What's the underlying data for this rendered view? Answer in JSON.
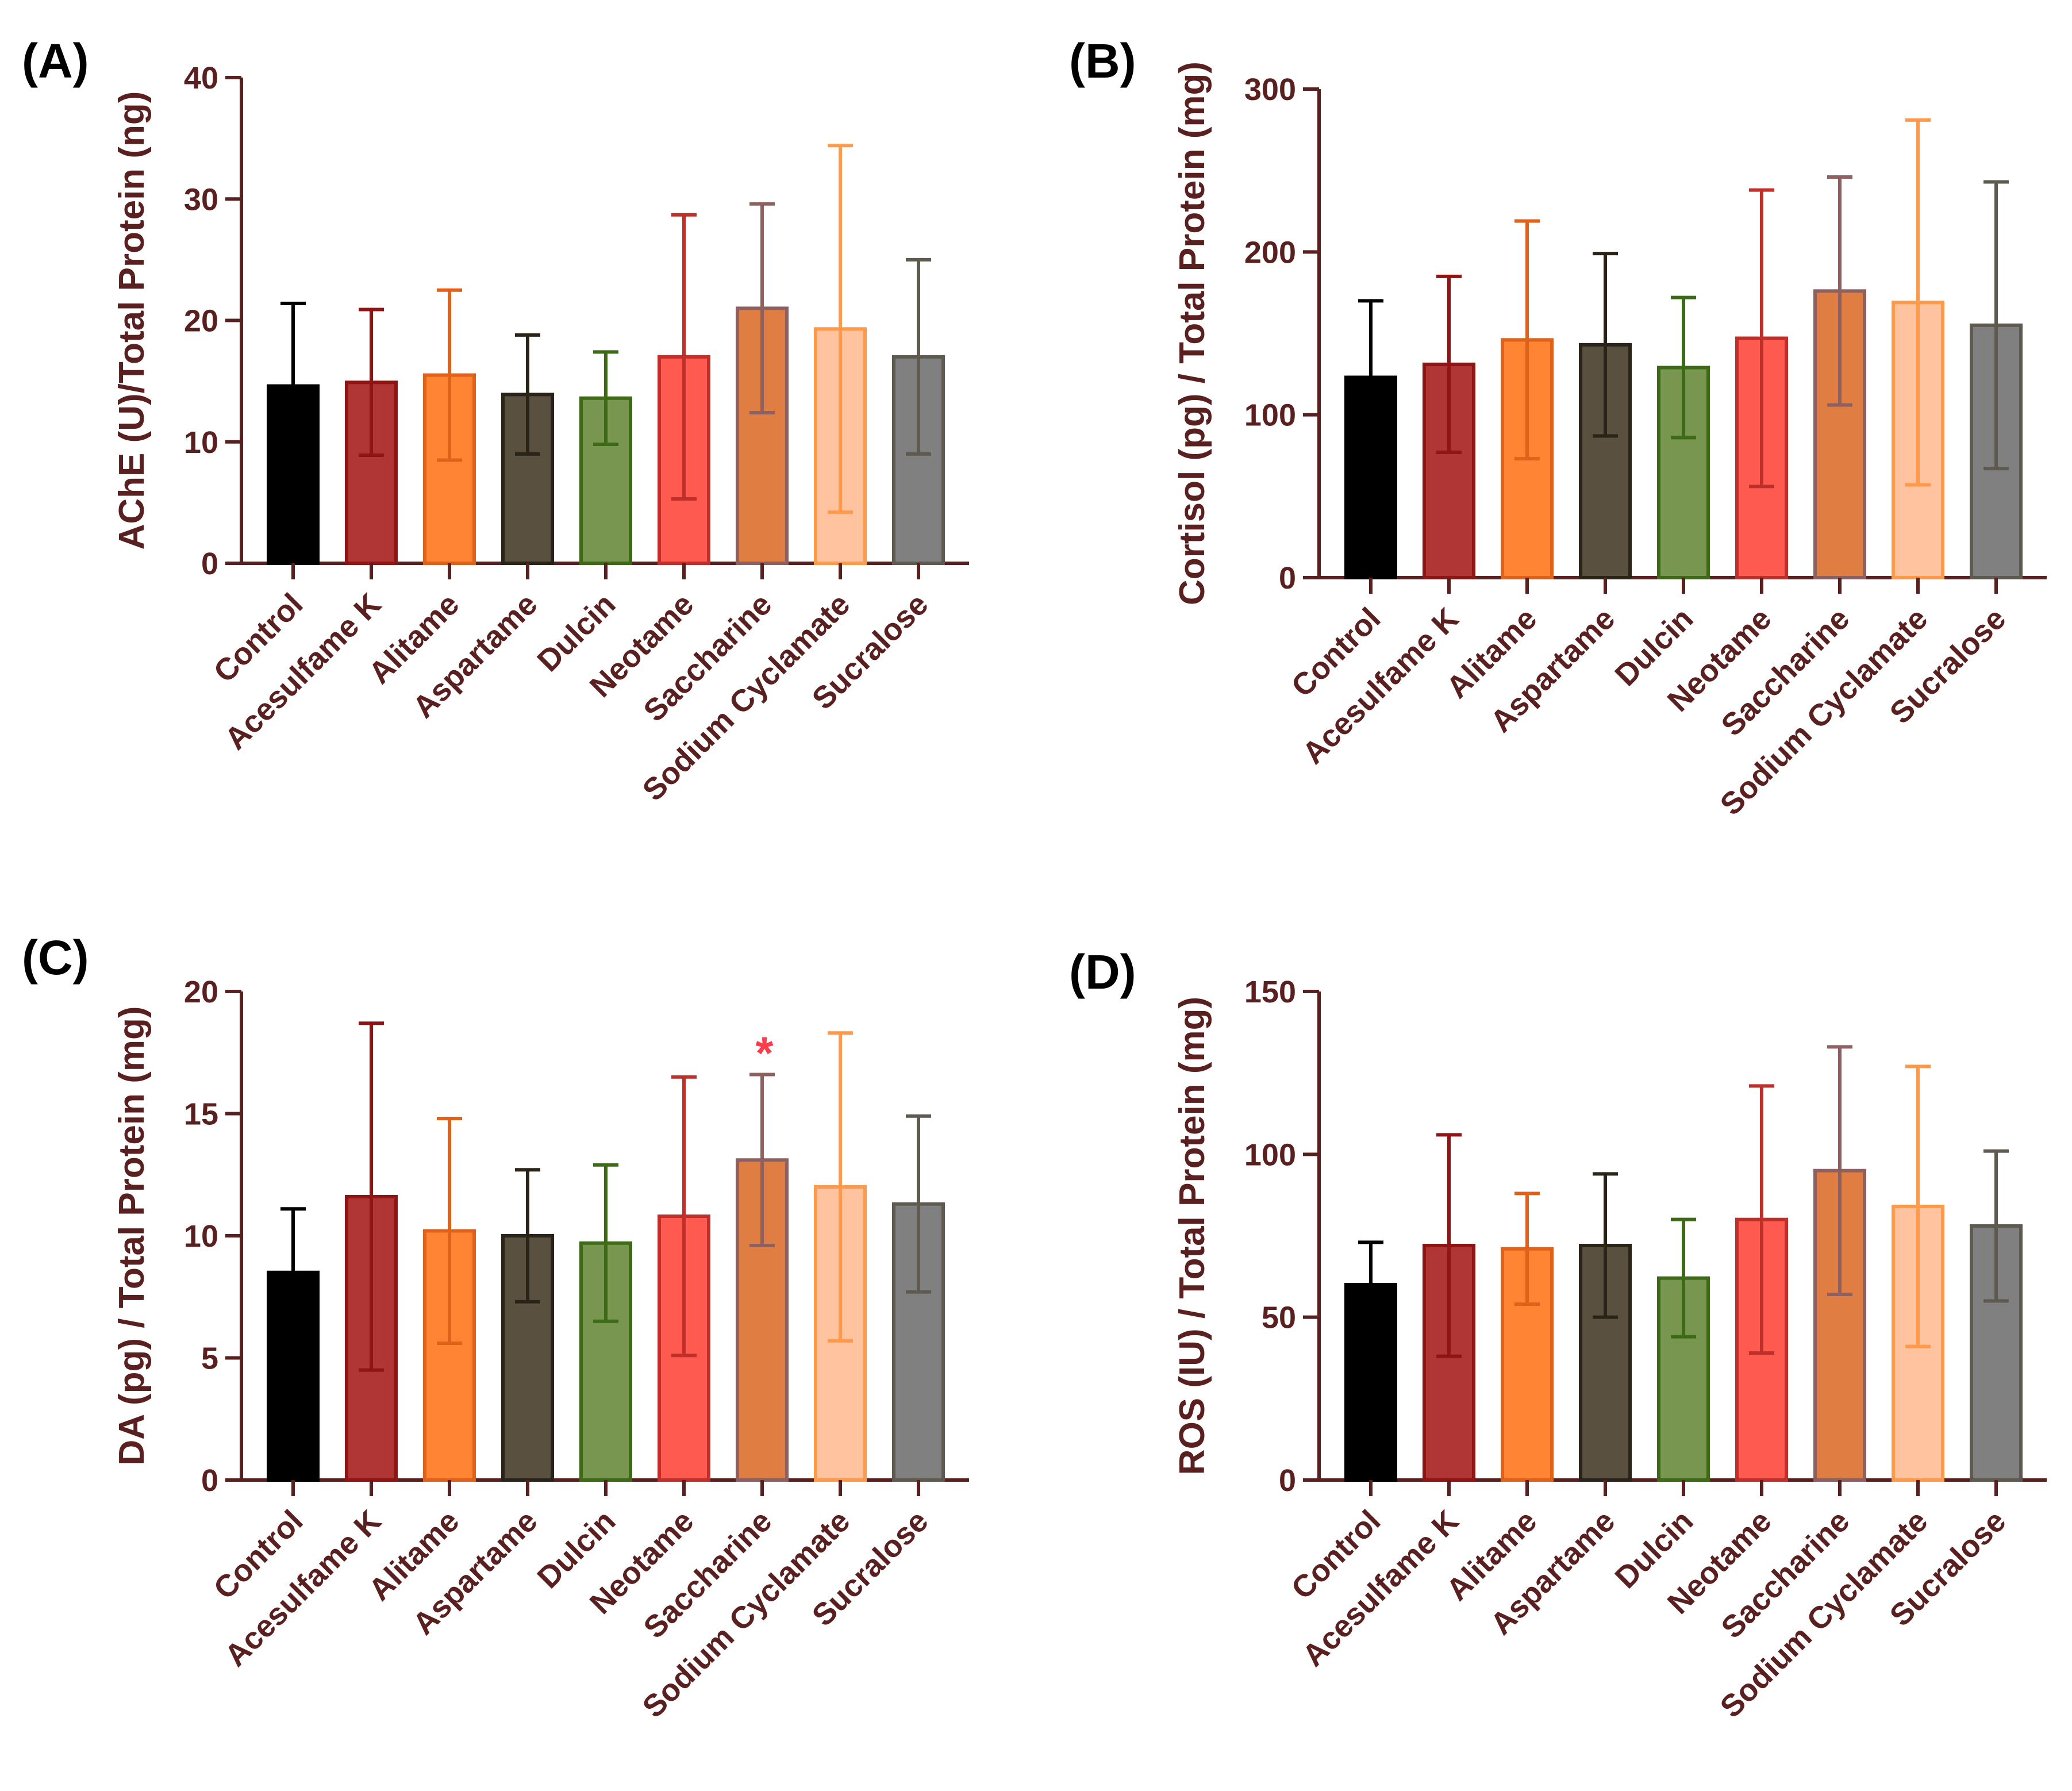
{
  "figure": {
    "axis_color": "#5a1f1f",
    "significance_color": "#ff3b4e"
  },
  "categories": [
    "Control",
    "Acesulfame K",
    "Alitame",
    "Aspartame",
    "Dulcin",
    "Neotame",
    "Saccharine",
    "Sodium Cyclamate",
    "Sucralose"
  ],
  "bar_styles": [
    {
      "fill": "#000000",
      "stroke": "#000000"
    },
    {
      "fill": "#b03535",
      "stroke": "#8f1414"
    },
    {
      "fill": "#ff8433",
      "stroke": "#e0621a"
    },
    {
      "fill": "#5a5040",
      "stroke": "#2a2418"
    },
    {
      "fill": "#789650",
      "stroke": "#3d6a16"
    },
    {
      "fill": "#ff5a50",
      "stroke": "#c0302a"
    },
    {
      "fill": "#e07d42",
      "stroke": "#8f6060"
    },
    {
      "fill": "#ffc49f",
      "stroke": "#ff9a4a"
    },
    {
      "fill": "#808080",
      "stroke": "#5e5a50"
    }
  ],
  "chart_data": [
    {
      "panel": "(A)",
      "type": "bar",
      "ylabel": "AChE (U)/Total Protein (ng)",
      "ylim": [
        0,
        40
      ],
      "yticks": [
        "0",
        "10",
        "20",
        "30",
        "40"
      ],
      "values": [
        14.6,
        14.9,
        15.5,
        13.9,
        13.6,
        17.0,
        21.0,
        19.3,
        17.0
      ],
      "errors": [
        6.8,
        6.0,
        7.0,
        4.9,
        3.8,
        11.7,
        8.6,
        15.1,
        8.0
      ],
      "annotations": []
    },
    {
      "panel": "(B)",
      "type": "bar",
      "ylabel": "Cortisol (pg) / Total Protein (mg)",
      "ylim": [
        0,
        300
      ],
      "yticks": [
        "0",
        "100",
        "200",
        "300"
      ],
      "values": [
        123,
        131,
        146,
        143,
        129,
        147,
        176,
        169,
        155
      ],
      "errors": [
        47,
        54,
        73,
        56,
        43,
        91,
        70,
        112,
        88
      ],
      "annotations": []
    },
    {
      "panel": "(C)",
      "type": "bar",
      "ylabel": "DA (pg) / Total Protein (mg)",
      "ylim": [
        0,
        20
      ],
      "yticks": [
        "0",
        "5",
        "10",
        "15",
        "20"
      ],
      "values": [
        8.5,
        11.6,
        10.2,
        10.0,
        9.7,
        10.8,
        13.1,
        12.0,
        11.3
      ],
      "errors": [
        2.6,
        7.1,
        4.6,
        2.7,
        3.2,
        5.7,
        3.5,
        6.3,
        3.6
      ],
      "annotations": [
        {
          "category": "Saccharine",
          "text": "*"
        }
      ]
    },
    {
      "panel": "(D)",
      "type": "bar",
      "ylabel": "ROS (IU) / Total Protein (mg)",
      "ylim": [
        0,
        150
      ],
      "yticks": [
        "0",
        "50",
        "100",
        "150"
      ],
      "values": [
        60,
        72,
        71,
        72,
        62,
        80,
        95,
        84,
        78
      ],
      "errors": [
        13,
        34,
        17,
        22,
        18,
        41,
        38,
        43,
        23
      ],
      "annotations": []
    }
  ]
}
